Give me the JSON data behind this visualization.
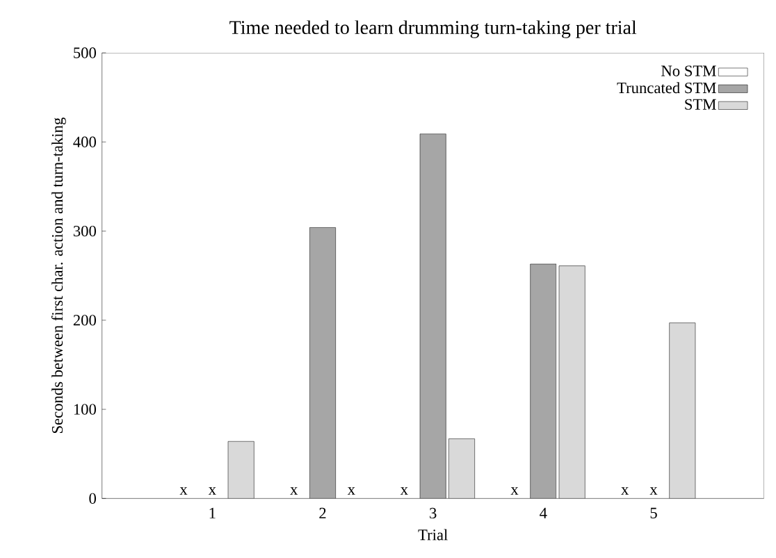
{
  "chart_data": {
    "type": "bar",
    "title": "Time needed to learn drumming turn-taking per trial",
    "xlabel": "Trial",
    "ylabel": "Seconds between first char. action and turn-taking",
    "categories": [
      "1",
      "2",
      "3",
      "4",
      "5"
    ],
    "series": [
      {
        "name": "No STM",
        "color": "#ffffff",
        "values": [
          null,
          null,
          null,
          null,
          null
        ],
        "value_labels": [
          "x",
          "x",
          "x",
          "x",
          "x"
        ]
      },
      {
        "name": "Truncated STM",
        "color": "#a6a6a6",
        "values": [
          null,
          304,
          409,
          263,
          null
        ],
        "value_labels": [
          "x",
          null,
          null,
          null,
          "x"
        ]
      },
      {
        "name": "STM",
        "color": "#d9d9d9",
        "values": [
          64,
          null,
          67,
          261,
          197
        ],
        "value_labels": [
          null,
          "x",
          null,
          null,
          null
        ]
      }
    ],
    "ylim": [
      0,
      500
    ],
    "yticks": [
      0,
      100,
      200,
      300,
      400,
      500
    ],
    "grid": false,
    "legend": "top right"
  }
}
